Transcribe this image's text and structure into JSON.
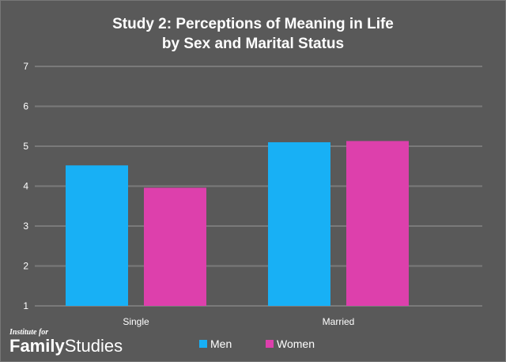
{
  "chart_data": {
    "type": "bar",
    "title": [
      "Study 2: Perceptions of Meaning in Life",
      "by Sex and Marital Status"
    ],
    "categories": [
      "Single",
      "Married"
    ],
    "series": [
      {
        "name": "Men",
        "values": [
          4.52,
          5.1
        ],
        "color": "#18b0f5"
      },
      {
        "name": "Women",
        "values": [
          3.96,
          5.13
        ],
        "color": "#dd40ac"
      }
    ],
    "ylim": [
      1,
      7
    ],
    "yticks": [
      "1",
      "2",
      "3",
      "4",
      "5",
      "6",
      "7"
    ],
    "grid": true,
    "legend_position": "bottom"
  },
  "logo": {
    "small": "Institute for",
    "bold": "Family",
    "light": "Studies"
  }
}
